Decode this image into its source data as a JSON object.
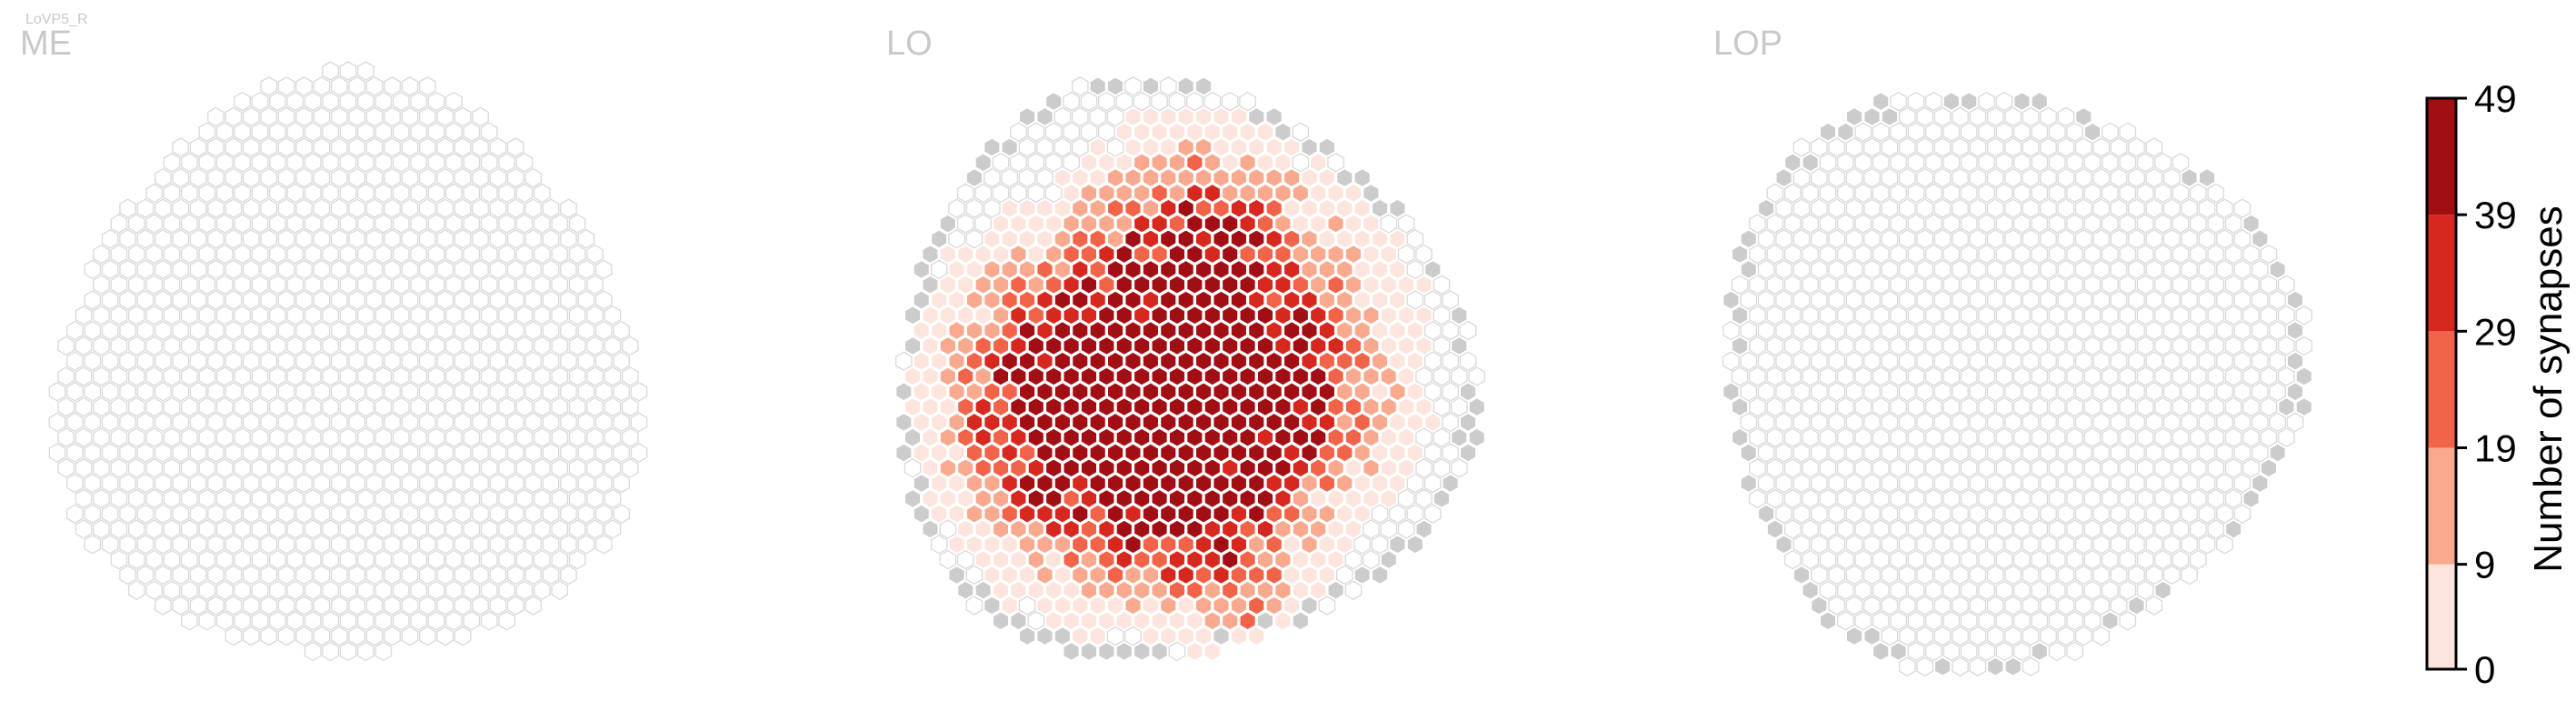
{
  "chart_data": {
    "type": "heatmap",
    "cell_type": "LoVP5_R",
    "panels": [
      {
        "name": "ME",
        "data_visible": false,
        "hotspots": [],
        "gray_border": false
      },
      {
        "name": "LO",
        "data_visible": true,
        "hotspots": [
          {
            "cx": -0.35,
            "cy": 0.05,
            "r": 0.22,
            "peak": 44
          },
          {
            "cx": -0.1,
            "cy": 0.1,
            "r": 0.3,
            "peak": 36
          },
          {
            "cx": 0.15,
            "cy": -0.1,
            "r": 0.28,
            "peak": 38
          },
          {
            "cx": 0.35,
            "cy": 0.08,
            "r": 0.18,
            "peak": 30
          },
          {
            "cx": 0.05,
            "cy": -0.45,
            "r": 0.18,
            "peak": 26
          },
          {
            "cx": -0.22,
            "cy": 0.35,
            "r": 0.2,
            "peak": 24
          },
          {
            "cx": 0.12,
            "cy": 0.45,
            "r": 0.18,
            "peak": 20
          },
          {
            "cx": 0.2,
            "cy": 0.72,
            "r": 0.1,
            "peak": 18
          }
        ],
        "gray_border": true
      },
      {
        "name": "LOP",
        "data_visible": false,
        "hotspots": [],
        "gray_border": true
      }
    ],
    "colorbar": {
      "label": "Number of synapses",
      "ticks": [
        0,
        9,
        19,
        29,
        39,
        49
      ],
      "bins": [
        {
          "min": 0,
          "max": 9,
          "color": "#fde5dd"
        },
        {
          "min": 9,
          "max": 19,
          "color": "#f9a98e"
        },
        {
          "min": 19,
          "max": 29,
          "color": "#f26449"
        },
        {
          "min": 29,
          "max": 39,
          "color": "#d6281f"
        },
        {
          "min": 39,
          "max": 49,
          "color": "#a10f15"
        }
      ]
    },
    "empty_cell_color": "#ffffff",
    "empty_cell_stroke": "#d9d9d9",
    "outside_cell_color": "#cccccc"
  }
}
